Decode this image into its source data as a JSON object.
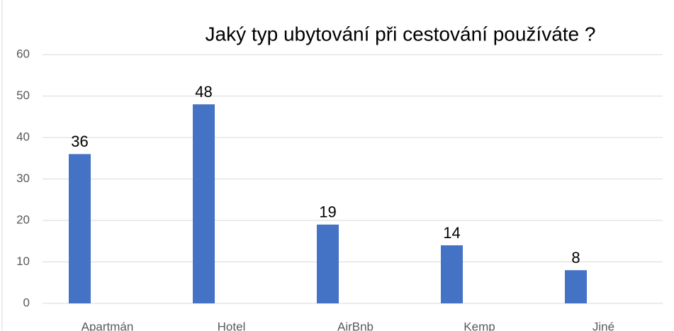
{
  "chart_data": {
    "type": "bar",
    "title": "Jaký typ ubytování při cestování používáte ?",
    "categories": [
      "Apartmán",
      "Hotel",
      "AirBnb",
      "Kemp",
      "Jiné"
    ],
    "values": [
      36,
      48,
      19,
      14,
      8
    ],
    "color": "#4472c4",
    "ylim": [
      0,
      60
    ],
    "yticks": [
      0,
      10,
      20,
      30,
      40,
      50,
      60
    ],
    "grid": true
  }
}
